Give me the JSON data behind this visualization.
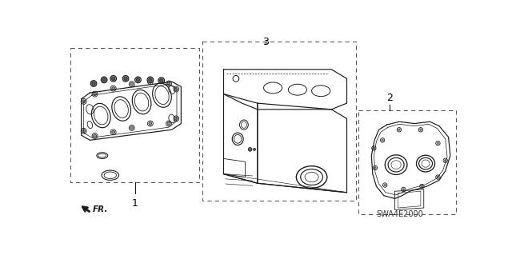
{
  "bg_color": "#ffffff",
  "line_color": "#1a1a1a",
  "dash_color": "#666666",
  "text_color": "#000000",
  "diagram_code": "SWA4E2000",
  "figsize": [
    6.4,
    3.19
  ],
  "dpi": 100
}
